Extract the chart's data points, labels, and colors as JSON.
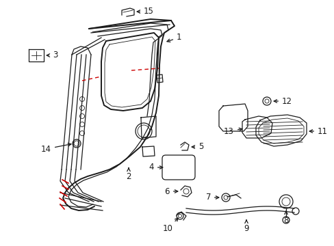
{
  "background_color": "#ffffff",
  "line_color": "#1a1a1a",
  "red_color": "#cc0000",
  "fig_w": 4.89,
  "fig_h": 3.6,
  "dpi": 100,
  "xlim": [
    0,
    489
  ],
  "ylim": [
    0,
    360
  ]
}
